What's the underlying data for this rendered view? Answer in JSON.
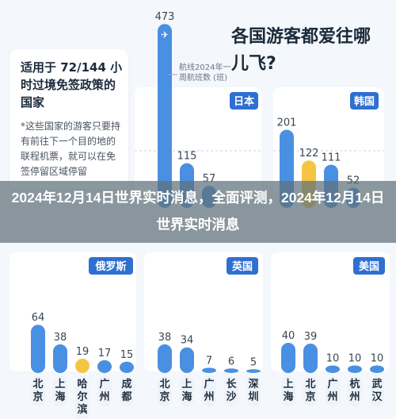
{
  "header": {
    "title": "各国游客都爱往哪儿飞?"
  },
  "info": {
    "title": "适用于 72/144 小时过境免签政策的国家",
    "note": "*这些国家的游客只要持有前往下一个目的地的联程机票，就可以在免签停留区域停留"
  },
  "overlay": {
    "headline": "2024年12月14日世界实时消息，全面评测，2024年12月14日世界实时消息"
  },
  "annotation": "航线2024年一周航班数 (班)",
  "colors": {
    "blue": "#4a90e2",
    "light_blue": "#5aa0ea",
    "yellow": "#f5c542",
    "panel_bg": "#ffffff",
    "label_bg": "#2f6fd0",
    "grid": "#c9d3de",
    "axis_text": "#8a96a3"
  },
  "chart_data": [
    {
      "type": "bar",
      "title": "日本",
      "yticks": [
        150,
        300
      ],
      "ylim": [
        0,
        500
      ],
      "categories": [
        "",
        "",
        ""
      ],
      "values": [
        473,
        115,
        57
      ],
      "highlight": [
        false,
        false,
        false
      ]
    },
    {
      "type": "bar",
      "title": "韩国",
      "categories": [
        "",
        "",
        "",
        ""
      ],
      "values": [
        201,
        122,
        111,
        52
      ],
      "highlight": [
        false,
        true,
        false,
        false
      ]
    },
    {
      "type": "bar",
      "title": "俄罗斯",
      "categories": [
        "北京",
        "上海",
        "哈尔滨",
        "广州",
        "成都"
      ],
      "values": [
        64,
        38,
        19,
        17,
        15
      ],
      "highlight": [
        false,
        false,
        true,
        false,
        false
      ]
    },
    {
      "type": "bar",
      "title": "英国",
      "categories": [
        "北京",
        "上海",
        "广州",
        "长沙",
        "深圳"
      ],
      "values": [
        38,
        34,
        7,
        6,
        5
      ],
      "highlight": [
        false,
        false,
        false,
        false,
        false
      ]
    },
    {
      "type": "bar",
      "title": "美国",
      "categories": [
        "上海",
        "北京",
        "广州",
        "杭州",
        "武汉"
      ],
      "values": [
        40,
        39,
        10,
        10,
        10
      ],
      "highlight": [
        false,
        false,
        false,
        false,
        false
      ]
    }
  ]
}
